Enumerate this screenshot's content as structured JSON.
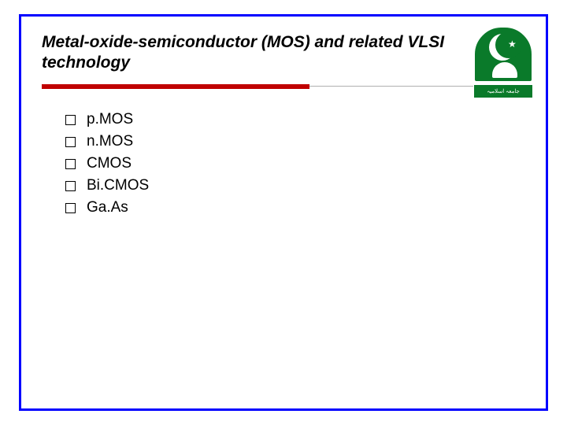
{
  "slide": {
    "title": "Metal-oxide-semiconductor (MOS) and related VLSI technology",
    "frame_border_color": "#0000ff",
    "underline": {
      "thick_color": "#c00000",
      "thin_color": "#b0b0b0"
    },
    "logo": {
      "bg_color": "#0a7a2a",
      "caption": "جامعہ اسلامیہ"
    },
    "items": [
      {
        "label": "p.MOS"
      },
      {
        "label": "n.MOS"
      },
      {
        "label": "CMOS"
      },
      {
        "label": "Bi.CMOS"
      },
      {
        "label": "Ga.As"
      }
    ]
  }
}
